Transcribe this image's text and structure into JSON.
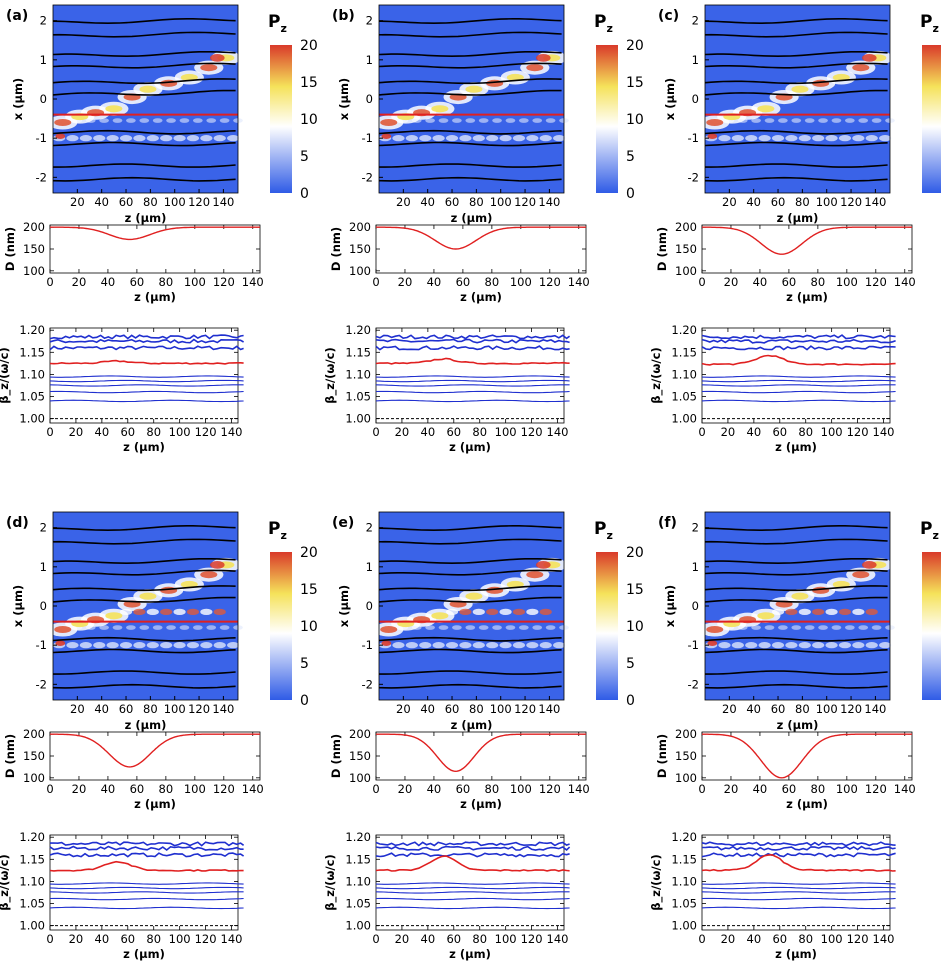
{
  "chart_data": {
    "type": "multi-panel",
    "colorbar": {
      "label": "P",
      "subscript": "z",
      "ticks": [
        0,
        5,
        10,
        15,
        20
      ],
      "range": [
        0,
        20
      ],
      "colors": [
        "#2f5be6",
        "#ffffff",
        "#f5e25a",
        "#d93a2a"
      ]
    },
    "heatmap_axes": {
      "xlabel": "z (μm)",
      "ylabel": "x (μm)",
      "xticks": [
        20,
        40,
        60,
        80,
        100,
        120,
        140
      ],
      "yticks": [
        -2,
        -1,
        0,
        1,
        2
      ],
      "xlim": [
        0,
        152
      ],
      "ylim": [
        -2.4,
        2.4
      ]
    },
    "d_axes": {
      "xlabel": "z (μm)",
      "ylabel": "D (nm)",
      "xticks": [
        0,
        20,
        40,
        60,
        80,
        100,
        120,
        140
      ],
      "yticks": [
        100,
        150,
        200
      ],
      "xlim": [
        0,
        145
      ],
      "ylim": [
        95,
        205
      ]
    },
    "beta_axes": {
      "xlabel": "z (μm)",
      "ylabel": "β_z/(ω/c)",
      "xticks": [
        0,
        20,
        40,
        60,
        80,
        100,
        120,
        140
      ],
      "yticks": [
        1.0,
        1.05,
        1.1,
        1.15,
        1.2
      ],
      "ytick_labels": [
        "1.00",
        "1.05",
        "1.10",
        "1.15",
        "1.20"
      ],
      "xlim": [
        0,
        145
      ],
      "ylim": [
        0.99,
        1.205
      ]
    },
    "waveguide_lines_x": [
      -2.05,
      -1.7,
      -1.15,
      -0.85,
      0.1,
      0.4,
      0.8,
      1.1,
      1.6,
      1.95
    ],
    "red_line_x": -0.4,
    "beta_levels_blue": [
      1.04,
      1.06,
      1.075,
      1.085,
      1.095,
      1.16,
      1.175,
      1.185
    ],
    "beta_dashed_level": 1.0,
    "panels": [
      {
        "label": "(a)",
        "D_min": 172,
        "D_center": 55,
        "D_width": 20,
        "red_beta_base": 1.125,
        "red_beta_peak": 0.005
      },
      {
        "label": "(b)",
        "D_min": 150,
        "D_center": 55,
        "D_width": 20,
        "red_beta_base": 1.125,
        "red_beta_peak": 0.01
      },
      {
        "label": "(c)",
        "D_min": 138,
        "D_center": 55,
        "D_width": 20,
        "red_beta_base": 1.123,
        "red_beta_peak": 0.02
      },
      {
        "label": "(d)",
        "D_min": 125,
        "D_center": 55,
        "D_width": 20,
        "red_beta_base": 1.125,
        "red_beta_peak": 0.02
      },
      {
        "label": "(e)",
        "D_min": 115,
        "D_center": 55,
        "D_width": 18,
        "red_beta_base": 1.125,
        "red_beta_peak": 0.032
      },
      {
        "label": "(f)",
        "D_min": 100,
        "D_center": 55,
        "D_width": 20,
        "red_beta_base": 1.125,
        "red_beta_peak": 0.035
      }
    ]
  }
}
